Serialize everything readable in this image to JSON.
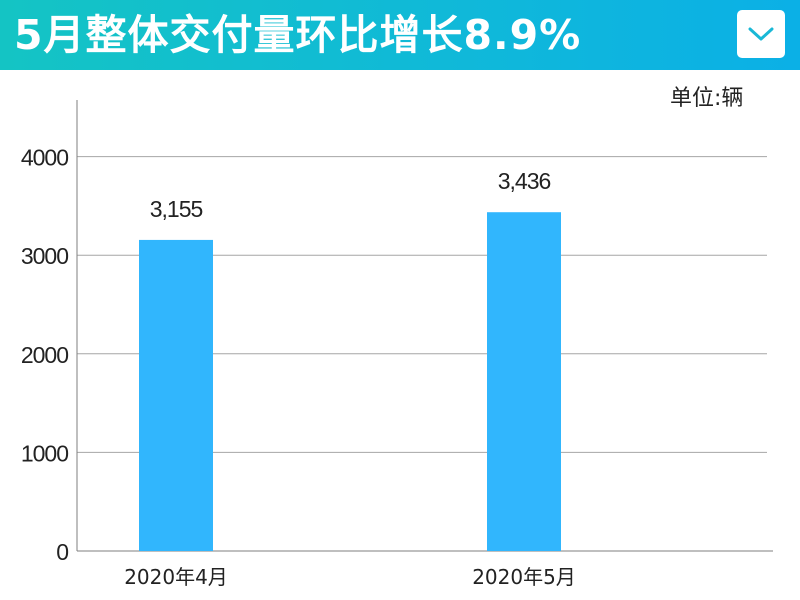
{
  "header": {
    "title": "5月整体交付量环比增长8.9%",
    "background": "#12bcd6",
    "menu_icon": "chevron-down-icon"
  },
  "unit_label": "单位:辆",
  "chart_data": {
    "type": "bar",
    "title": "5月整体交付量环比增长8.9%",
    "categories": [
      "2020年4月",
      "2020年5月"
    ],
    "values": [
      3155,
      3436
    ],
    "value_labels": [
      "3,155",
      "3,436"
    ],
    "xlabel": "",
    "ylabel": "",
    "unit": "单位:辆",
    "ylim": [
      0,
      4500
    ],
    "yticks": [
      0,
      1000,
      2000,
      3000,
      4000
    ],
    "ytick_labels": [
      "0",
      "1000",
      "2000",
      "3000",
      "4000"
    ],
    "grid": true,
    "bar_color": "#31b6fd",
    "gridline_color": "#a6a6a6"
  }
}
